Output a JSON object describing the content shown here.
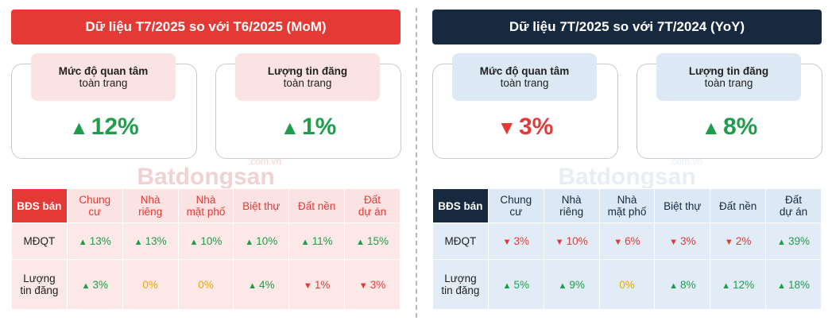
{
  "panels": [
    {
      "title": "Dữ liệu T7/2025 so với T6/2025 (MoM)",
      "cards": [
        {
          "line1": "Mức độ quan tâm",
          "line2": "toàn trang",
          "dir": "up",
          "value": "12%"
        },
        {
          "line1": "Lượng tin đăng",
          "line2": "toàn trang",
          "dir": "up",
          "value": "1%"
        }
      ],
      "watermark": {
        "text": "Batdongsan",
        "sub": ".com.vn"
      },
      "table": {
        "corner": "BĐS bán",
        "columns": [
          {
            "l1": "Chung",
            "l2": "cư"
          },
          {
            "l1": "Nhà",
            "l2": "riêng"
          },
          {
            "l1": "Nhà",
            "l2": "mặt phố"
          },
          {
            "l1": "Biệt thự",
            "l2": ""
          },
          {
            "l1": "Đất nền",
            "l2": ""
          },
          {
            "l1": "Đất",
            "l2": "dự án"
          }
        ],
        "rows": [
          {
            "l1": "MĐQT",
            "l2": "",
            "cells": [
              {
                "dir": "up",
                "value": "13%"
              },
              {
                "dir": "up",
                "value": "13%"
              },
              {
                "dir": "up",
                "value": "10%"
              },
              {
                "dir": "up",
                "value": "10%"
              },
              {
                "dir": "up",
                "value": "11%"
              },
              {
                "dir": "up",
                "value": "15%"
              }
            ]
          },
          {
            "l1": "Lượng",
            "l2": "tin đăng",
            "cells": [
              {
                "dir": "up",
                "value": "3%"
              },
              {
                "dir": "flat",
                "value": "0%"
              },
              {
                "dir": "flat",
                "value": "0%"
              },
              {
                "dir": "up",
                "value": "4%"
              },
              {
                "dir": "down",
                "value": "1%"
              },
              {
                "dir": "down",
                "value": "3%"
              }
            ]
          }
        ]
      }
    },
    {
      "title": "Dữ liệu 7T/2025 so với 7T/2024 (YoY)",
      "cards": [
        {
          "line1": "Mức độ quan tâm",
          "line2": "toàn trang",
          "dir": "down",
          "value": "3%"
        },
        {
          "line1": "Lượng tin đăng",
          "line2": "toàn trang",
          "dir": "up",
          "value": "8%"
        }
      ],
      "watermark": {
        "text": "Batdongsan",
        "sub": ".com.vn"
      },
      "table": {
        "corner": "BĐS bán",
        "columns": [
          {
            "l1": "Chung",
            "l2": "cư"
          },
          {
            "l1": "Nhà",
            "l2": "riêng"
          },
          {
            "l1": "Nhà",
            "l2": "mặt phố"
          },
          {
            "l1": "Biệt thự",
            "l2": ""
          },
          {
            "l1": "Đất nền",
            "l2": ""
          },
          {
            "l1": "Đất",
            "l2": "dự án"
          }
        ],
        "rows": [
          {
            "l1": "MĐQT",
            "l2": "",
            "cells": [
              {
                "dir": "down",
                "value": "3%"
              },
              {
                "dir": "down",
                "value": "10%"
              },
              {
                "dir": "down",
                "value": "6%"
              },
              {
                "dir": "down",
                "value": "3%"
              },
              {
                "dir": "down",
                "value": "2%"
              },
              {
                "dir": "up",
                "value": "39%"
              }
            ]
          },
          {
            "l1": "Lượng",
            "l2": "tin đăng",
            "cells": [
              {
                "dir": "up",
                "value": "5%"
              },
              {
                "dir": "up",
                "value": "9%"
              },
              {
                "dir": "flat",
                "value": "0%"
              },
              {
                "dir": "up",
                "value": "8%"
              },
              {
                "dir": "up",
                "value": "12%"
              },
              {
                "dir": "up",
                "value": "18%"
              }
            ]
          }
        ]
      }
    }
  ],
  "colors": {
    "up": "#1e9e4a",
    "down": "#e53935",
    "flat": "#e8a800",
    "mom_accent": "#e53935",
    "yoy_accent": "#17293f"
  }
}
